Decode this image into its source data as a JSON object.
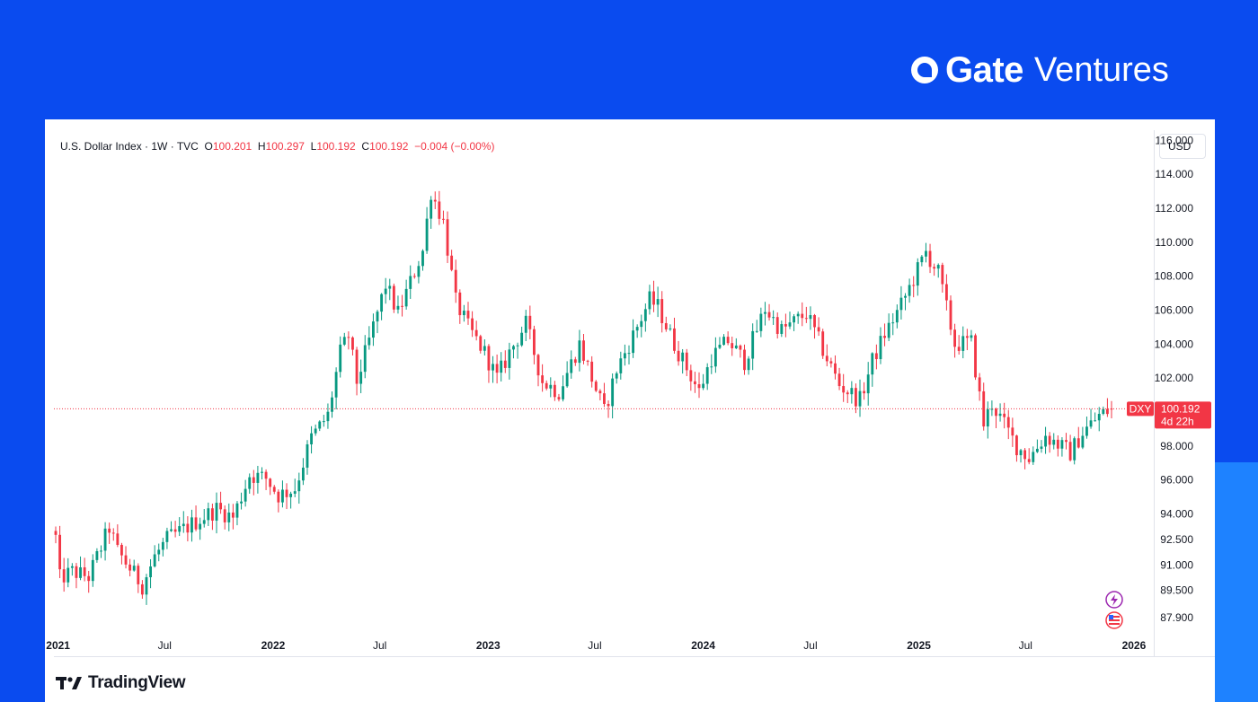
{
  "brand": {
    "name_bold": "Gate",
    "name_light": "Ventures"
  },
  "legend": {
    "symbol": "U.S. Dollar Index · 1W · TVC",
    "open_label": "O",
    "open_value": "100.201",
    "high_label": "H",
    "high_value": "100.297",
    "low_label": "L",
    "low_value": "100.192",
    "close_label": "C",
    "close_value": "100.192",
    "change": "−0.004 (−0.00%)"
  },
  "unit_label": "USD",
  "price_tag": {
    "ticker": "DXY",
    "price": "100.192",
    "countdown": "4d 22h"
  },
  "footer": {
    "logo_text": "TradingView"
  },
  "icons": [
    "bolt-icon",
    "us-flag-icon"
  ],
  "colors": {
    "up": "#089981",
    "down": "#F23645",
    "background": "#0A4BEF"
  },
  "chart_data": {
    "type": "candlestick",
    "title": "U.S. Dollar Index",
    "ylabel": "USD",
    "ylim": [
      87,
      116.6
    ],
    "y_ticks": [
      "116.000",
      "114.000",
      "112.000",
      "110.000",
      "108.000",
      "106.000",
      "104.000",
      "102.000",
      "98.000",
      "96.000",
      "94.000",
      "92.500",
      "91.000",
      "89.500",
      "87.900"
    ],
    "x_ticks": [
      {
        "label": "2021",
        "date": "2021-01-01",
        "bold": true
      },
      {
        "label": "Jul",
        "date": "2021-07-01",
        "bold": false
      },
      {
        "label": "2022",
        "date": "2022-01-01",
        "bold": true
      },
      {
        "label": "Jul",
        "date": "2022-07-01",
        "bold": false
      },
      {
        "label": "2023",
        "date": "2023-01-01",
        "bold": true
      },
      {
        "label": "Jul",
        "date": "2023-07-01",
        "bold": false
      },
      {
        "label": "2024",
        "date": "2024-01-01",
        "bold": true
      },
      {
        "label": "Jul",
        "date": "2024-07-01",
        "bold": false
      },
      {
        "label": "2025",
        "date": "2025-01-01",
        "bold": true
      },
      {
        "label": "Jul",
        "date": "2025-07-01",
        "bold": false
      },
      {
        "label": "2026",
        "date": "2026-01-01",
        "bold": true
      }
    ],
    "last_price": 100.192,
    "grid": false,
    "path": [
      [
        "2020-12-28",
        92.6
      ],
      [
        "2021-01-04",
        90.2
      ],
      [
        "2021-01-25",
        90.6
      ],
      [
        "2021-02-22",
        90.3
      ],
      [
        "2021-03-29",
        93.2
      ],
      [
        "2021-04-12",
        91.8
      ],
      [
        "2021-05-24",
        89.8
      ],
      [
        "2021-06-14",
        91.5
      ],
      [
        "2021-07-05",
        92.5
      ],
      [
        "2021-08-16",
        93.4
      ],
      [
        "2021-09-27",
        94.3
      ],
      [
        "2021-10-25",
        93.8
      ],
      [
        "2021-11-22",
        96.3
      ],
      [
        "2021-12-20",
        96.1
      ],
      [
        "2022-01-10",
        95.1
      ],
      [
        "2022-02-07",
        95.5
      ],
      [
        "2022-03-07",
        98.5
      ],
      [
        "2022-04-04",
        99.8
      ],
      [
        "2022-04-25",
        103.5
      ],
      [
        "2022-05-09",
        104.5
      ],
      [
        "2022-05-23",
        101.8
      ],
      [
        "2022-06-13",
        104.2
      ],
      [
        "2022-07-11",
        107.5
      ],
      [
        "2022-08-01",
        105.8
      ],
      [
        "2022-09-12",
        109.5
      ],
      [
        "2022-09-26",
        113.0
      ],
      [
        "2022-10-17",
        111.2
      ],
      [
        "2022-11-07",
        106.5
      ],
      [
        "2022-11-28",
        105.0
      ],
      [
        "2022-12-26",
        103.5
      ],
      [
        "2023-01-16",
        102.0
      ],
      [
        "2023-02-06",
        103.5
      ],
      [
        "2023-03-06",
        105.2
      ],
      [
        "2023-04-03",
        101.8
      ],
      [
        "2023-05-01",
        101.2
      ],
      [
        "2023-06-05",
        104.0
      ],
      [
        "2023-07-17",
        100.0
      ],
      [
        "2023-08-07",
        102.5
      ],
      [
        "2023-08-28",
        104.0
      ],
      [
        "2023-10-02",
        106.6
      ],
      [
        "2023-10-16",
        106.2
      ],
      [
        "2023-11-13",
        104.0
      ],
      [
        "2023-12-25",
        101.2
      ],
      [
        "2024-01-15",
        103.2
      ],
      [
        "2024-02-12",
        104.2
      ],
      [
        "2024-03-11",
        103.0
      ],
      [
        "2024-04-15",
        106.1
      ],
      [
        "2024-05-13",
        104.8
      ],
      [
        "2024-06-24",
        105.8
      ],
      [
        "2024-07-15",
        104.2
      ],
      [
        "2024-08-19",
        101.6
      ],
      [
        "2024-09-23",
        100.7
      ],
      [
        "2024-10-14",
        103.0
      ],
      [
        "2024-11-04",
        104.6
      ],
      [
        "2024-12-02",
        106.3
      ],
      [
        "2025-01-13",
        109.4
      ],
      [
        "2025-02-03",
        108.2
      ],
      [
        "2025-03-03",
        104.0
      ],
      [
        "2025-03-31",
        104.1
      ],
      [
        "2025-04-21",
        99.3
      ],
      [
        "2025-05-05",
        100.5
      ],
      [
        "2025-06-16",
        98.0
      ],
      [
        "2025-07-07",
        97.3
      ],
      [
        "2025-08-04",
        98.6
      ],
      [
        "2025-09-15",
        97.6
      ],
      [
        "2025-10-06",
        98.8
      ],
      [
        "2025-11-03",
        99.8
      ],
      [
        "2025-11-24",
        100.192
      ]
    ]
  }
}
